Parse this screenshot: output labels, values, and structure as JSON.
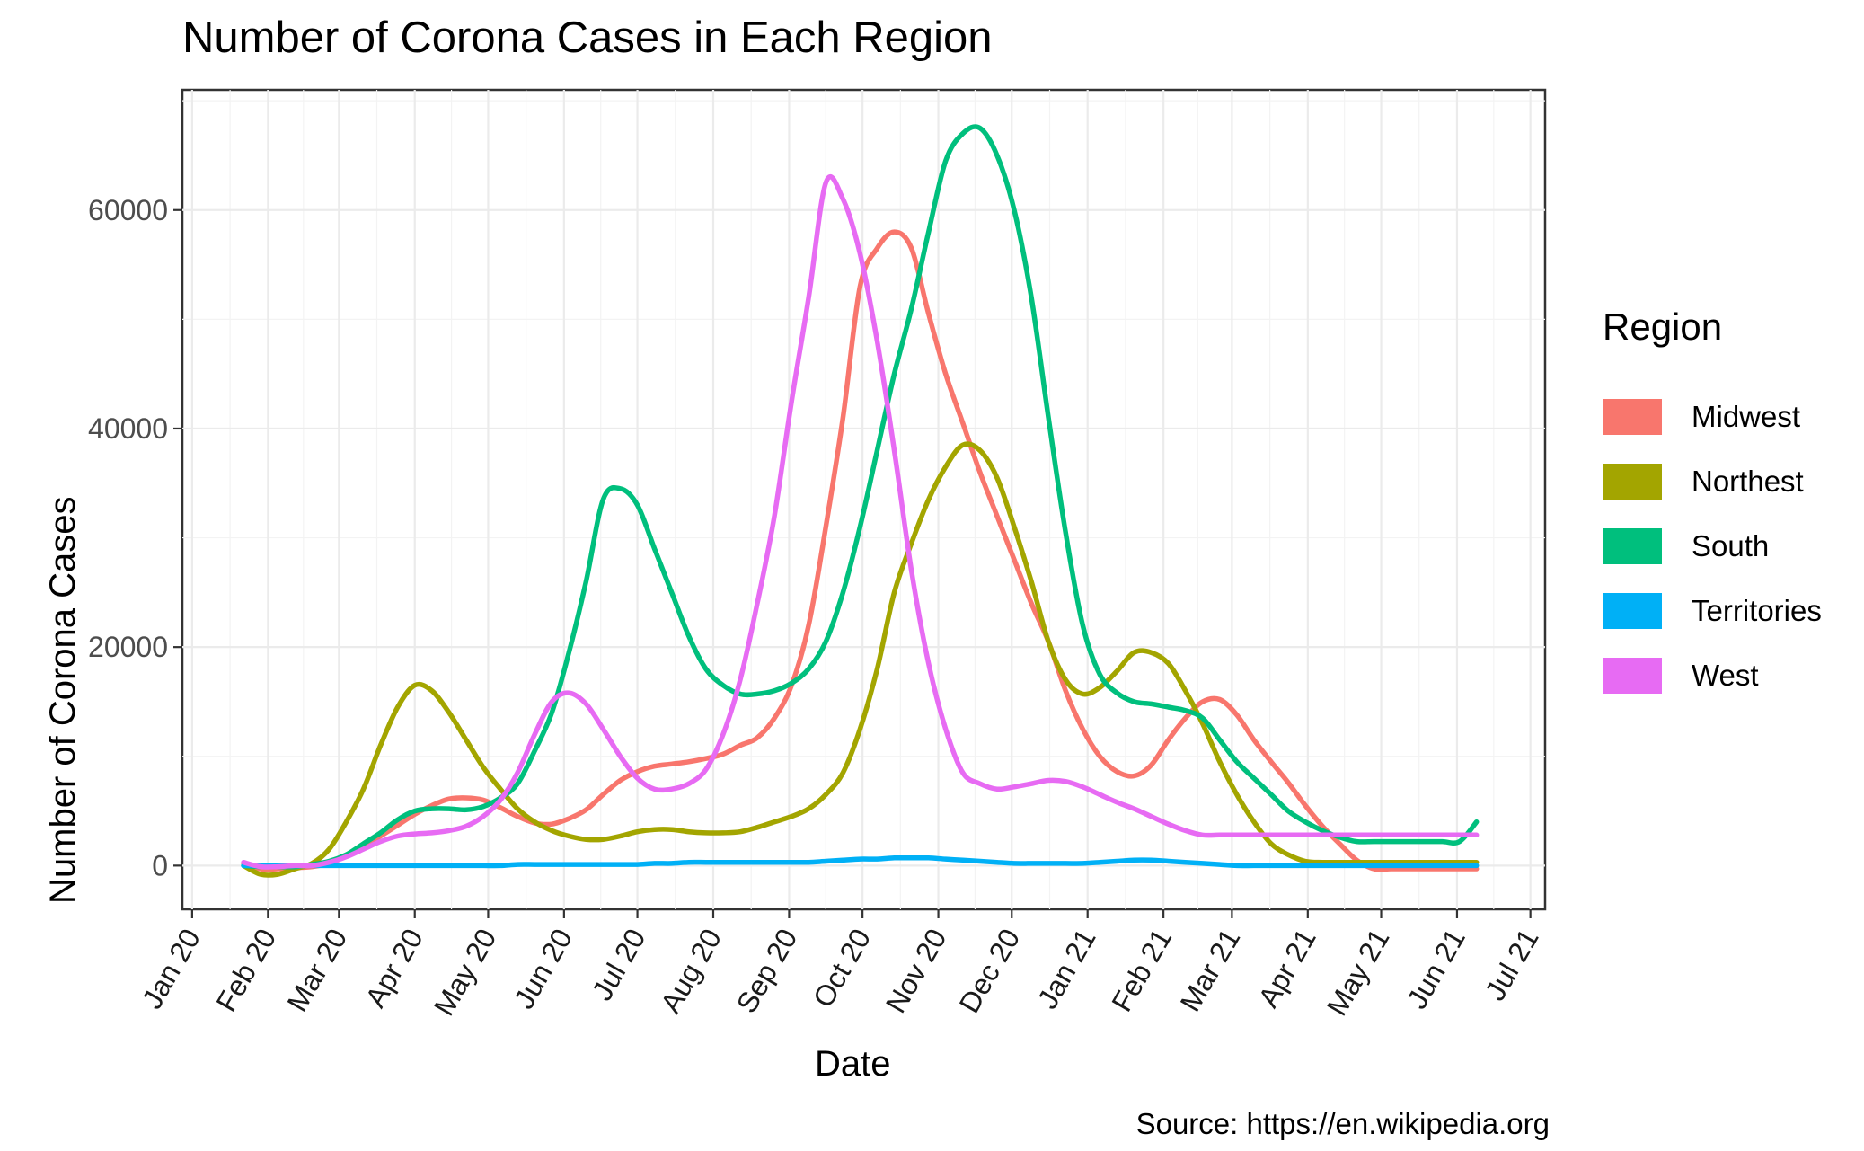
{
  "title": "Number of Corona Cases in Each Region",
  "caption": "Source: https://en.wikipedia.org",
  "chart_data": {
    "type": "line",
    "title": "Number of Corona Cases in Each Region",
    "xlabel": "Date",
    "ylabel": "Number of Corona Cases",
    "legend_title": "Region",
    "legend_position": "right",
    "grid": true,
    "x_ticks": [
      "Jan 20",
      "Feb 20",
      "Mar 20",
      "Apr 20",
      "May 20",
      "Jun 20",
      "Jul 20",
      "Aug 20",
      "Sep 20",
      "Oct 20",
      "Nov 20",
      "Dec 20",
      "Jan 21",
      "Feb 21",
      "Mar 21",
      "Apr 21",
      "May 21",
      "Jun 21",
      "Jul 21"
    ],
    "y_ticks": [
      0,
      20000,
      40000,
      60000
    ],
    "xlim": [
      "2019-12-28",
      "2021-07-07"
    ],
    "ylim": [
      -4000,
      71000
    ],
    "x": [
      "2020-01-22",
      "2020-01-29",
      "2020-02-05",
      "2020-02-12",
      "2020-02-19",
      "2020-02-26",
      "2020-03-04",
      "2020-03-11",
      "2020-03-18",
      "2020-03-25",
      "2020-04-01",
      "2020-04-08",
      "2020-04-15",
      "2020-04-22",
      "2020-04-29",
      "2020-05-06",
      "2020-05-13",
      "2020-05-20",
      "2020-05-27",
      "2020-06-03",
      "2020-06-10",
      "2020-06-17",
      "2020-06-24",
      "2020-07-01",
      "2020-07-08",
      "2020-07-15",
      "2020-07-22",
      "2020-07-29",
      "2020-08-05",
      "2020-08-12",
      "2020-08-19",
      "2020-08-26",
      "2020-09-02",
      "2020-09-09",
      "2020-09-16",
      "2020-09-23",
      "2020-09-30",
      "2020-10-07",
      "2020-10-14",
      "2020-10-21",
      "2020-10-28",
      "2020-11-04",
      "2020-11-11",
      "2020-11-18",
      "2020-11-25",
      "2020-12-02",
      "2020-12-09",
      "2020-12-16",
      "2020-12-23",
      "2020-12-30",
      "2021-01-06",
      "2021-01-13",
      "2021-01-20",
      "2021-01-27",
      "2021-02-03",
      "2021-02-10",
      "2021-02-17",
      "2021-02-24",
      "2021-03-03",
      "2021-03-10",
      "2021-03-17",
      "2021-03-24",
      "2021-03-31",
      "2021-04-07",
      "2021-04-14",
      "2021-04-21",
      "2021-04-28",
      "2021-05-05",
      "2021-05-12",
      "2021-05-19",
      "2021-05-26",
      "2021-06-02",
      "2021-06-09"
    ],
    "series": [
      {
        "name": "Midwest",
        "color": "#F8766D",
        "values": [
          200,
          -300,
          -300,
          -200,
          -100,
          200,
          900,
          1800,
          2700,
          3700,
          4700,
          5500,
          6100,
          6200,
          6000,
          5300,
          4500,
          3900,
          3800,
          4300,
          5100,
          6500,
          7800,
          8600,
          9100,
          9300,
          9500,
          9800,
          10200,
          11000,
          11700,
          13500,
          16500,
          22000,
          31000,
          41000,
          53000,
          56500,
          58000,
          56500,
          50500,
          45000,
          40500,
          36000,
          32000,
          28000,
          24000,
          20500,
          16000,
          12500,
          10000,
          8600,
          8200,
          9200,
          11500,
          13500,
          15000,
          15200,
          13800,
          11500,
          9500,
          7600,
          5500,
          3600,
          2000,
          500,
          -300,
          -300,
          -300,
          -300,
          -300,
          -300,
          -300
        ]
      },
      {
        "name": "Northest",
        "color": "#A3A500",
        "values": [
          0,
          -800,
          -800,
          -300,
          200,
          1500,
          4000,
          7000,
          11000,
          14500,
          16500,
          16000,
          14000,
          11500,
          9000,
          7000,
          5200,
          4000,
          3200,
          2700,
          2400,
          2400,
          2700,
          3100,
          3300,
          3300,
          3100,
          3000,
          3000,
          3100,
          3500,
          4000,
          4500,
          5200,
          6500,
          8500,
          12500,
          18000,
          25000,
          29500,
          33500,
          36500,
          38500,
          38000,
          35500,
          31000,
          26000,
          20500,
          17000,
          15700,
          16300,
          17800,
          19500,
          19500,
          18500,
          16000,
          13000,
          9500,
          6500,
          4000,
          2000,
          1000,
          400,
          300,
          300,
          300,
          300,
          300,
          300,
          300,
          300,
          300,
          300
        ]
      },
      {
        "name": "South",
        "color": "#00BF7D",
        "values": [
          0,
          -100,
          -100,
          -100,
          100,
          400,
          1000,
          2000,
          3000,
          4200,
          5000,
          5200,
          5200,
          5100,
          5400,
          6200,
          7500,
          10500,
          14000,
          19500,
          26000,
          33500,
          34500,
          33000,
          29000,
          25000,
          21000,
          18000,
          16500,
          15700,
          15700,
          16000,
          16700,
          18000,
          20500,
          25000,
          31000,
          38000,
          45000,
          51000,
          58000,
          64500,
          67000,
          67500,
          65000,
          60000,
          52000,
          41000,
          30500,
          22000,
          17500,
          15800,
          15000,
          14800,
          14500,
          14200,
          13500,
          11500,
          9500,
          8000,
          6500,
          5000,
          4000,
          3200,
          2600,
          2200,
          2200,
          2200,
          2200,
          2200,
          2200,
          2200,
          4000
        ]
      },
      {
        "name": "Territories",
        "color": "#00B0F6",
        "values": [
          0,
          0,
          0,
          0,
          0,
          0,
          0,
          0,
          0,
          0,
          0,
          0,
          0,
          0,
          0,
          0,
          100,
          100,
          100,
          100,
          100,
          100,
          100,
          100,
          200,
          200,
          300,
          300,
          300,
          300,
          300,
          300,
          300,
          300,
          400,
          500,
          600,
          600,
          700,
          700,
          700,
          600,
          500,
          400,
          300,
          200,
          200,
          200,
          200,
          200,
          300,
          400,
          500,
          500,
          400,
          300,
          200,
          100,
          0,
          0,
          0,
          0,
          0,
          0,
          0,
          0,
          0,
          0,
          0,
          0,
          0,
          0,
          0
        ]
      },
      {
        "name": "West",
        "color": "#E76BF3",
        "values": [
          300,
          -100,
          -100,
          0,
          0,
          300,
          800,
          1500,
          2200,
          2700,
          2900,
          3000,
          3200,
          3600,
          4500,
          6000,
          8500,
          12000,
          15000,
          15800,
          14800,
          12500,
          10000,
          8000,
          7000,
          7000,
          7500,
          8800,
          12000,
          17000,
          24000,
          32000,
          42500,
          52000,
          62500,
          61000,
          56000,
          48000,
          38000,
          27000,
          18500,
          12500,
          8500,
          7500,
          7000,
          7200,
          7500,
          7800,
          7700,
          7200,
          6500,
          5800,
          5200,
          4500,
          3800,
          3200,
          2800,
          2800,
          2800,
          2800,
          2800,
          2800,
          2800,
          2800,
          2800,
          2800,
          2800,
          2800,
          2800,
          2800,
          2800,
          2800,
          2800
        ]
      }
    ]
  }
}
